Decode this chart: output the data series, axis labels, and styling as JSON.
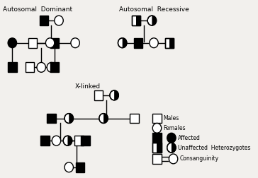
{
  "title_ad": "Autosomal  Dominant",
  "title_ar": "Autosomal  Recessive",
  "title_xl": "X-linked",
  "bg_color": "#f2f0ed",
  "lw": 1.0,
  "legend_items": [
    "Males",
    "Females",
    "Affected",
    "Unaffected  Heterozygotes",
    "Consanguinity"
  ]
}
